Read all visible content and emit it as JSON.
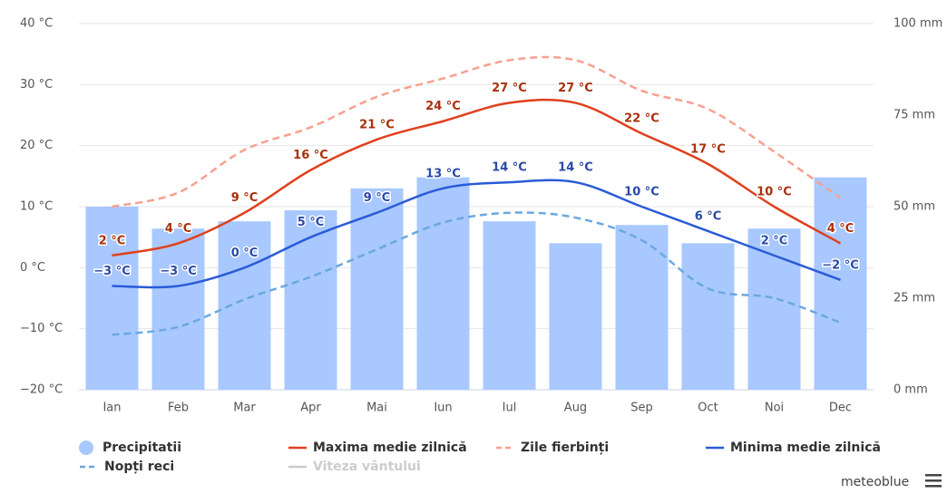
{
  "chart_data": {
    "type": "combo",
    "categories": [
      "Ian",
      "Feb",
      "Mar",
      "Apr",
      "Mai",
      "Iun",
      "Iul",
      "Aug",
      "Sep",
      "Oct",
      "Noi",
      "Dec"
    ],
    "ylim": [
      -20,
      40
    ],
    "yticks": [
      {
        "value": -20,
        "label": "−20 °C"
      },
      {
        "value": -10,
        "label": "−10 °C"
      },
      {
        "value": 0,
        "label": "0 °C"
      },
      {
        "value": 10,
        "label": "10 °C"
      },
      {
        "value": 20,
        "label": "20 °C"
      },
      {
        "value": 30,
        "label": "30 °C"
      },
      {
        "value": 40,
        "label": "40 °C"
      }
    ],
    "y2lim": [
      0,
      100
    ],
    "y2ticks": [
      {
        "value": 0,
        "label": "0 mm"
      },
      {
        "value": 25,
        "label": "25 mm"
      },
      {
        "value": 50,
        "label": "50 mm"
      },
      {
        "value": 75,
        "label": "75 mm"
      },
      {
        "value": 100,
        "label": "100 mm"
      }
    ],
    "grid": true,
    "series": [
      {
        "name": "Precipitatii",
        "type": "bar",
        "axis": "y2",
        "color": "#a8c8ff",
        "values": [
          50,
          44,
          46,
          49,
          55,
          58,
          46,
          40,
          45,
          40,
          44,
          58
        ]
      },
      {
        "name": "Maxima medie zilnică",
        "type": "line",
        "color": "#e0401c",
        "label_color": "#a8300c",
        "values": [
          2,
          4,
          9,
          16,
          21,
          24,
          27,
          27,
          22,
          17,
          10,
          4
        ],
        "value_labels": [
          "2 °C",
          "4 °C",
          "9 °C",
          "16 °C",
          "21 °C",
          "24 °C",
          "27 °C",
          "27 °C",
          "22 °C",
          "17 °C",
          "10 °C",
          "4 °C"
        ]
      },
      {
        "name": "Zile fierbinți",
        "type": "line",
        "dashed": true,
        "color": "#f8a090",
        "values": [
          10,
          12.3,
          19.3,
          23,
          28,
          31,
          34,
          34,
          29,
          26,
          19,
          11.4
        ]
      },
      {
        "name": "Minima medie zilnică",
        "type": "line",
        "color": "#2a5bd7",
        "label_color": "#2a4aa8",
        "values": [
          -3,
          -3,
          0,
          5,
          9,
          13,
          14,
          14,
          10,
          6,
          2,
          -2
        ],
        "value_labels": [
          "−3 °C",
          "−3 °C",
          "0 °C",
          "5 °C",
          "9 °C",
          "13 °C",
          "14 °C",
          "14 °C",
          "10 °C",
          "6 °C",
          "2 °C",
          "−2 °C"
        ]
      },
      {
        "name": "Nopți reci",
        "type": "line",
        "dashed": true,
        "color": "#6aa8e0",
        "values": [
          -11,
          -9.7,
          -5.2,
          -1.5,
          3,
          7.4,
          9,
          8.2,
          4.5,
          -3.4,
          -5,
          -9
        ]
      },
      {
        "name": "Viteza vântului",
        "type": "line",
        "visible": false,
        "color": "#cccccc",
        "values": [
          null,
          null,
          null,
          null,
          null,
          null,
          null,
          null,
          null,
          null,
          null,
          null
        ]
      }
    ],
    "brand": "meteoblue"
  }
}
